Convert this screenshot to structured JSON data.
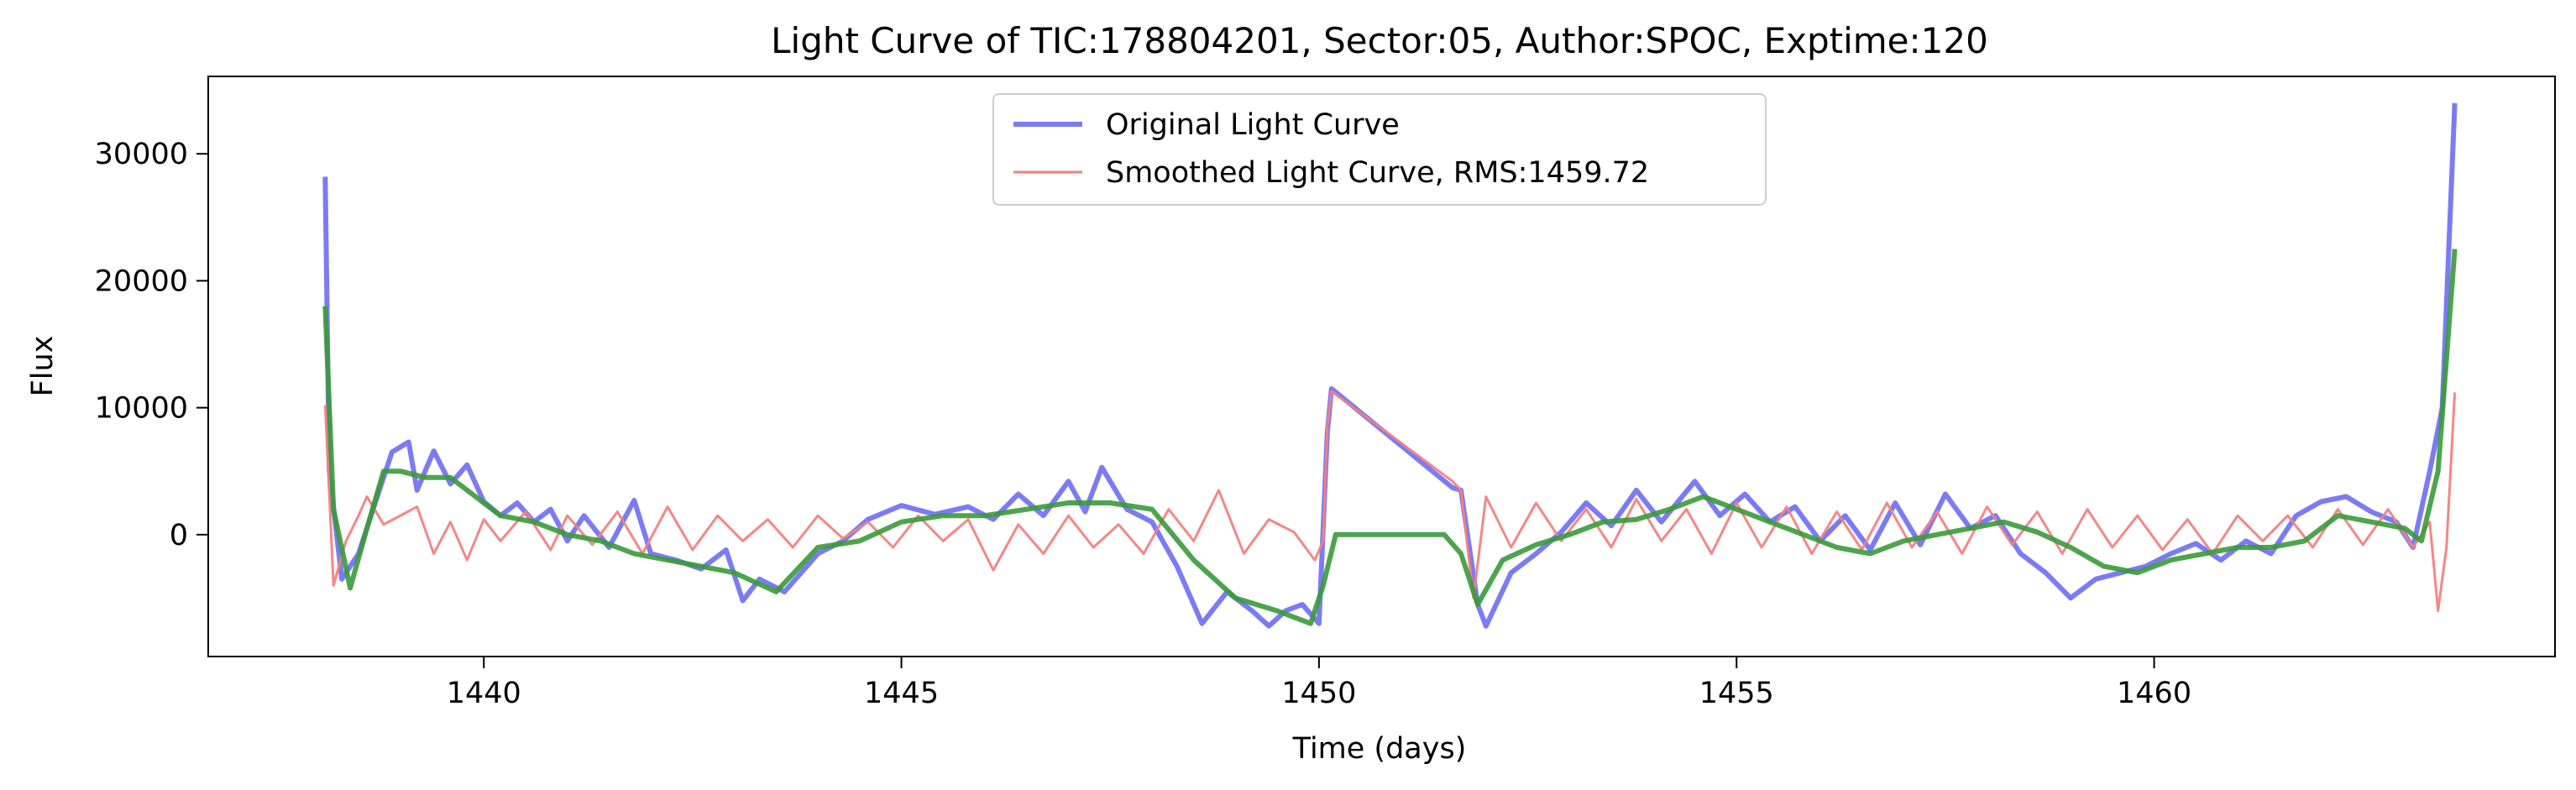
{
  "chart_data": {
    "type": "line",
    "title": "Light Curve of TIC:178804201, Sector:05, Author:SPOC, Exptime:120",
    "xlabel": "Time (days)",
    "ylabel": "Flux",
    "xlim": [
      1436.7,
      1464.8
    ],
    "ylim": [
      -9600,
      36100
    ],
    "xticks": [
      1440,
      1445,
      1450,
      1455,
      1460
    ],
    "xtick_labels": [
      "1440",
      "1445",
      "1450",
      "1455",
      "1460"
    ],
    "yticks": [
      0,
      10000,
      20000,
      30000
    ],
    "ytick_labels": [
      "0",
      "10000",
      "20000",
      "30000"
    ],
    "grid": false,
    "legend": {
      "placement": "top-center",
      "entries": [
        {
          "label": "Original Light Curve",
          "color": "#7b7bf5"
        },
        {
          "label": "Smoothed Light Curve, RMS:1459.72",
          "color": "#f57f7f"
        }
      ]
    },
    "series": [
      {
        "name": "Original Light Curve",
        "color": "#7b7bf5",
        "x": [
          1438.1,
          1438.15,
          1438.3,
          1438.5,
          1438.7,
          1438.9,
          1439.1,
          1439.2,
          1439.4,
          1439.6,
          1439.8,
          1440.0,
          1440.2,
          1440.4,
          1440.6,
          1440.8,
          1441.0,
          1441.2,
          1441.5,
          1441.8,
          1442.0,
          1442.3,
          1442.6,
          1442.9,
          1443.1,
          1443.3,
          1443.6,
          1444.0,
          1444.3,
          1444.6,
          1445.0,
          1445.4,
          1445.8,
          1446.1,
          1446.4,
          1446.7,
          1447.0,
          1447.2,
          1447.4,
          1447.7,
          1448.0,
          1448.3,
          1448.6,
          1448.9,
          1449.2,
          1449.4,
          1449.6,
          1449.8,
          1450.0,
          1450.1,
          1450.15,
          1451.6,
          1451.7,
          1451.9,
          1452.0,
          1452.3,
          1452.6,
          1452.9,
          1453.2,
          1453.5,
          1453.8,
          1454.1,
          1454.5,
          1454.8,
          1455.1,
          1455.4,
          1455.7,
          1456.0,
          1456.3,
          1456.6,
          1456.9,
          1457.2,
          1457.5,
          1457.8,
          1458.1,
          1458.4,
          1458.7,
          1459.0,
          1459.3,
          1459.6,
          1459.9,
          1460.2,
          1460.5,
          1460.8,
          1461.1,
          1461.4,
          1461.7,
          1462.0,
          1462.3,
          1462.6,
          1462.9,
          1463.1,
          1463.3,
          1463.45,
          1463.6
        ],
        "y": [
          28200,
          5000,
          -3500,
          -1500,
          2500,
          6500,
          7300,
          3500,
          6600,
          4000,
          5500,
          2600,
          1500,
          2500,
          1000,
          2000,
          -500,
          1500,
          -1000,
          2700,
          -1500,
          -2000,
          -2700,
          -1200,
          -5200,
          -3500,
          -4500,
          -1500,
          -500,
          1200,
          2300,
          1600,
          2200,
          1200,
          3200,
          1500,
          4200,
          1800,
          5300,
          2000,
          1000,
          -2500,
          -7000,
          -4500,
          -6000,
          -7200,
          -6000,
          -5500,
          -7000,
          8000,
          11500,
          3700,
          3500,
          -5500,
          -7200,
          -3000,
          -1500,
          200,
          2500,
          700,
          3500,
          1000,
          4200,
          1500,
          3200,
          1000,
          2200,
          -500,
          1500,
          -1200,
          2500,
          -800,
          3200,
          500,
          1500,
          -1500,
          -3000,
          -5000,
          -3500,
          -3000,
          -2500,
          -1500,
          -700,
          -2000,
          -500,
          -1500,
          1500,
          2600,
          3000,
          1800,
          1000,
          -1000,
          5000,
          10000,
          34000
        ]
      },
      {
        "name": "Smoothed Light Curve, RMS:1459.72",
        "color": "#f57f7f",
        "x": [
          1438.1,
          1438.2,
          1438.35,
          1438.5,
          1438.6,
          1438.8,
          1439.0,
          1439.2,
          1439.4,
          1439.6,
          1439.8,
          1440.0,
          1440.2,
          1440.5,
          1440.8,
          1441.0,
          1441.3,
          1441.6,
          1441.9,
          1442.2,
          1442.5,
          1442.8,
          1443.1,
          1443.4,
          1443.7,
          1444.0,
          1444.3,
          1444.6,
          1444.9,
          1445.2,
          1445.5,
          1445.8,
          1446.1,
          1446.4,
          1446.7,
          1447.0,
          1447.3,
          1447.6,
          1447.9,
          1448.2,
          1448.5,
          1448.8,
          1449.1,
          1449.4,
          1449.7,
          1449.95,
          1450.05,
          1450.1,
          1450.15,
          1451.6,
          1451.7,
          1451.85,
          1452.0,
          1452.3,
          1452.6,
          1452.9,
          1453.2,
          1453.5,
          1453.8,
          1454.1,
          1454.4,
          1454.7,
          1455.0,
          1455.3,
          1455.6,
          1455.9,
          1456.2,
          1456.5,
          1456.8,
          1457.1,
          1457.4,
          1457.7,
          1458.0,
          1458.3,
          1458.6,
          1458.9,
          1459.2,
          1459.5,
          1459.8,
          1460.1,
          1460.4,
          1460.7,
          1461.0,
          1461.3,
          1461.6,
          1461.9,
          1462.2,
          1462.5,
          1462.8,
          1463.1,
          1463.3,
          1463.4,
          1463.5,
          1463.6
        ],
        "y": [
          10200,
          -4000,
          -500,
          1500,
          3000,
          800,
          1500,
          2200,
          -1500,
          1000,
          -2000,
          1200,
          -500,
          1800,
          -1200,
          1500,
          -800,
          1800,
          -1500,
          2200,
          -1200,
          1500,
          -500,
          1200,
          -1000,
          1500,
          -300,
          1000,
          -1000,
          1500,
          -500,
          1200,
          -2800,
          800,
          -1500,
          1500,
          -1000,
          800,
          -1500,
          2000,
          -500,
          3500,
          -1500,
          1200,
          200,
          -2000,
          -500,
          8500,
          11300,
          4200,
          3500,
          -5000,
          3000,
          -1000,
          2500,
          -500,
          2000,
          -1000,
          2800,
          -500,
          2000,
          -1500,
          2500,
          -1000,
          2200,
          -1500,
          1800,
          -1200,
          2500,
          -1000,
          1800,
          -1500,
          2200,
          -800,
          1800,
          -1500,
          2000,
          -1000,
          1500,
          -1200,
          1200,
          -1500,
          1500,
          -500,
          1500,
          -1000,
          2000,
          -800,
          2000,
          -1000,
          1000,
          -6000,
          -1000,
          11200
        ]
      },
      {
        "name": "",
        "color": "#3a9a3a",
        "x": [
          1438.1,
          1438.2,
          1438.4,
          1438.6,
          1438.8,
          1439.0,
          1439.3,
          1439.6,
          1439.9,
          1440.2,
          1440.6,
          1441.0,
          1441.4,
          1441.8,
          1442.2,
          1442.6,
          1443.0,
          1443.5,
          1444.0,
          1444.5,
          1445.0,
          1445.5,
          1446.0,
          1446.5,
          1447.0,
          1447.5,
          1448.0,
          1448.5,
          1449.0,
          1449.5,
          1449.9,
          1450.05,
          1450.2,
          1451.5,
          1451.7,
          1451.9,
          1452.2,
          1452.6,
          1453.0,
          1453.4,
          1453.8,
          1454.2,
          1454.6,
          1455.0,
          1455.4,
          1455.8,
          1456.2,
          1456.6,
          1457.0,
          1457.4,
          1457.8,
          1458.2,
          1458.6,
          1459.0,
          1459.4,
          1459.8,
          1460.2,
          1460.6,
          1461.0,
          1461.4,
          1461.8,
          1462.2,
          1462.6,
          1463.0,
          1463.2,
          1463.4,
          1463.6
        ],
        "y": [
          18000,
          2000,
          -4200,
          500,
          5000,
          5000,
          4500,
          4500,
          3000,
          1500,
          1000,
          0,
          -500,
          -1500,
          -2000,
          -2500,
          -3000,
          -4500,
          -1000,
          -500,
          1000,
          1500,
          1500,
          2000,
          2500,
          2500,
          2000,
          -2000,
          -5000,
          -6000,
          -7000,
          -4000,
          0,
          0,
          -1500,
          -5500,
          -2000,
          -800,
          0,
          1000,
          1200,
          2000,
          3000,
          2000,
          1000,
          0,
          -1000,
          -1500,
          -500,
          0,
          500,
          1000,
          200,
          -1000,
          -2500,
          -3000,
          -2000,
          -1500,
          -1000,
          -1000,
          -500,
          1500,
          1000,
          500,
          -500,
          5000,
          22500
        ]
      }
    ]
  }
}
